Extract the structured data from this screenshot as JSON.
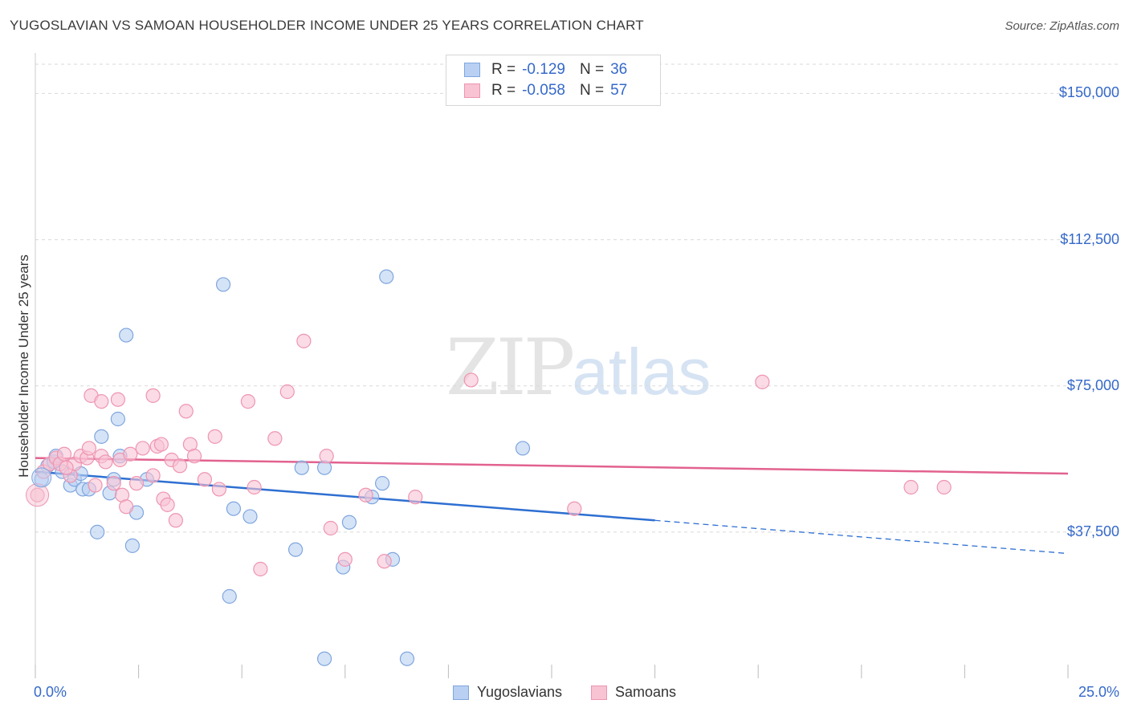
{
  "title": "YUGOSLAVIAN VS SAMOAN HOUSEHOLDER INCOME UNDER 25 YEARS CORRELATION CHART",
  "source": "Source: ZipAtlas.com",
  "watermark": {
    "zip": "ZIP",
    "atlas": "atlas"
  },
  "legend_top": {
    "rows": [
      {
        "r_label": "R =",
        "r_value": "-0.129",
        "n_label": "N =",
        "n_value": "36"
      },
      {
        "r_label": "R =",
        "r_value": "-0.058",
        "n_label": "N =",
        "n_value": "57"
      }
    ]
  },
  "bottom_legend": [
    "Yugoslavians",
    "Samoans"
  ],
  "colors": {
    "blue_fill": "#b9d0f2",
    "blue_stroke": "#7fa6df",
    "blue_line": "#2e6fd1",
    "pink_fill": "#f8c3d3",
    "pink_stroke": "#ee95b1",
    "pink_line": "#e2628f",
    "tick_text": "#3569c9",
    "grid": "#d9d9d9"
  },
  "chart_data": {
    "type": "scatter",
    "title": "YUGOSLAVIAN VS SAMOAN HOUSEHOLDER INCOME UNDER 25 YEARS CORRELATION CHART",
    "xlabel": "",
    "ylabel": "Householder Income Under 25 years",
    "xlim": [
      0,
      25
    ],
    "ylim": [
      0,
      157500
    ],
    "x_tick_labels": [
      "0.0%",
      "25.0%"
    ],
    "y_ticks": [
      37500,
      75000,
      112500,
      150000
    ],
    "y_tick_labels": [
      "$37,500",
      "$75,000",
      "$112,500",
      "$150,000"
    ],
    "grid": "horizontal dashed",
    "series": [
      {
        "name": "Yugoslavians",
        "points": [
          [
            0.15,
            51000
          ],
          [
            0.3,
            54500
          ],
          [
            0.45,
            55500
          ],
          [
            0.5,
            57000
          ],
          [
            0.65,
            53000
          ],
          [
            0.85,
            49500
          ],
          [
            0.95,
            51000
          ],
          [
            1.1,
            52500
          ],
          [
            1.15,
            48500
          ],
          [
            1.3,
            48500
          ],
          [
            1.5,
            37500
          ],
          [
            1.6,
            62000
          ],
          [
            1.8,
            47500
          ],
          [
            1.9,
            51000
          ],
          [
            2.0,
            66500
          ],
          [
            2.05,
            57000
          ],
          [
            2.2,
            88000
          ],
          [
            2.45,
            42500
          ],
          [
            2.35,
            34000
          ],
          [
            2.7,
            51000
          ],
          [
            4.55,
            101000
          ],
          [
            4.7,
            21000
          ],
          [
            4.8,
            43500
          ],
          [
            5.2,
            41500
          ],
          [
            6.3,
            33000
          ],
          [
            6.45,
            54000
          ],
          [
            7.0,
            54000
          ],
          [
            7.0,
            5000
          ],
          [
            7.45,
            28500
          ],
          [
            7.6,
            40000
          ],
          [
            8.15,
            46500
          ],
          [
            8.4,
            50000
          ],
          [
            8.5,
            103000
          ],
          [
            8.65,
            30500
          ],
          [
            9.0,
            5000
          ],
          [
            11.8,
            59000
          ]
        ]
      },
      {
        "name": "Samoans",
        "points": [
          [
            0.05,
            47000
          ],
          [
            0.2,
            53000
          ],
          [
            0.35,
            55000
          ],
          [
            0.5,
            56500
          ],
          [
            0.6,
            55000
          ],
          [
            0.7,
            57500
          ],
          [
            0.85,
            52000
          ],
          [
            0.95,
            55000
          ],
          [
            1.1,
            57000
          ],
          [
            1.25,
            56500
          ],
          [
            1.3,
            59000
          ],
          [
            1.45,
            49500
          ],
          [
            1.6,
            57000
          ],
          [
            1.7,
            55500
          ],
          [
            1.9,
            50000
          ],
          [
            2.05,
            56000
          ],
          [
            2.1,
            47000
          ],
          [
            2.2,
            44000
          ],
          [
            2.3,
            57500
          ],
          [
            2.45,
            50000
          ],
          [
            2.6,
            59000
          ],
          [
            2.85,
            52000
          ],
          [
            2.95,
            59500
          ],
          [
            3.05,
            60000
          ],
          [
            3.1,
            46000
          ],
          [
            3.2,
            44500
          ],
          [
            3.3,
            56000
          ],
          [
            3.4,
            40500
          ],
          [
            3.5,
            54500
          ],
          [
            3.65,
            68500
          ],
          [
            3.75,
            60000
          ],
          [
            3.85,
            57000
          ],
          [
            4.1,
            51000
          ],
          [
            4.35,
            62000
          ],
          [
            4.45,
            48500
          ],
          [
            5.15,
            71000
          ],
          [
            5.3,
            49000
          ],
          [
            5.45,
            28000
          ],
          [
            5.8,
            61500
          ],
          [
            6.1,
            73500
          ],
          [
            6.5,
            86500
          ],
          [
            7.05,
            57000
          ],
          [
            7.15,
            38500
          ],
          [
            7.5,
            30500
          ],
          [
            8.0,
            47000
          ],
          [
            8.45,
            30000
          ],
          [
            9.2,
            46500
          ],
          [
            10.55,
            76500
          ],
          [
            13.05,
            43500
          ],
          [
            17.6,
            76000
          ],
          [
            21.2,
            49000
          ],
          [
            22.0,
            49000
          ],
          [
            1.35,
            72500
          ],
          [
            1.6,
            71000
          ],
          [
            2.85,
            72500
          ],
          [
            2.0,
            71500
          ],
          [
            0.75,
            54000
          ]
        ]
      }
    ],
    "trend_lines": [
      {
        "series": "Yugoslavians",
        "solid": [
          [
            0,
            53000
          ],
          [
            15,
            40500
          ]
        ],
        "dashed": [
          [
            15,
            40500
          ],
          [
            25,
            32000
          ]
        ]
      },
      {
        "series": "Samoans",
        "solid": [
          [
            0,
            56500
          ],
          [
            25,
            52500
          ]
        ]
      }
    ]
  }
}
